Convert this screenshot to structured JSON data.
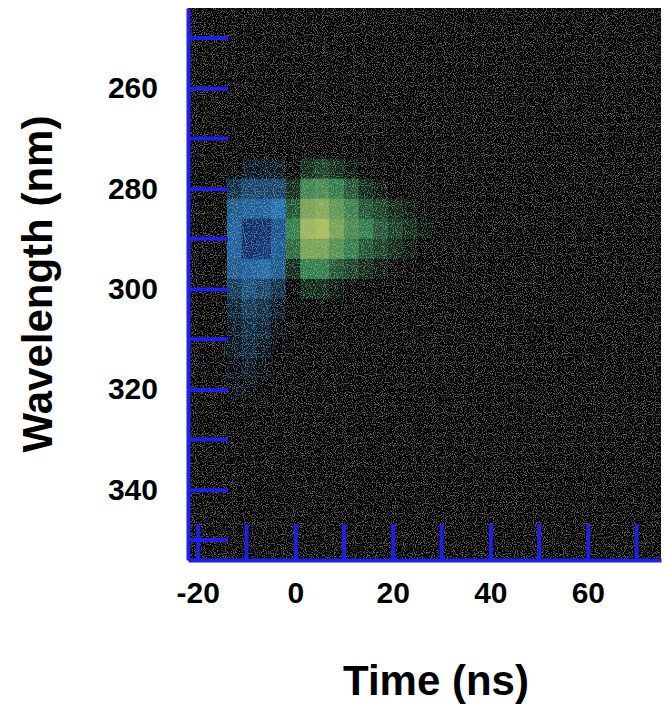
{
  "chart_data": {
    "type": "heatmap",
    "x_label": "Time (ns)",
    "y_label": "Wavelength (nm)",
    "xlim": [
      -22,
      75
    ],
    "ylim": [
      244,
      354
    ],
    "xticks": [
      -20,
      0,
      20,
      40,
      60
    ],
    "yticks": [
      260,
      280,
      300,
      320,
      340
    ],
    "x": [
      -12.5,
      -9.5,
      -6.5,
      -3.5,
      -0.5,
      2.5,
      5.5,
      8.5,
      11.5,
      14.5,
      17.5,
      20.5,
      23.5,
      26.5
    ],
    "y": [
      276,
      280,
      284,
      288,
      292,
      296,
      300,
      304,
      308,
      312,
      316,
      320,
      324
    ],
    "z": [
      [
        0,
        -0.1,
        -0.1,
        -0.1,
        0,
        0.1,
        0.15,
        0.1,
        0.05,
        0,
        0,
        0,
        0,
        0
      ],
      [
        -0.2,
        -0.3,
        -0.3,
        -0.3,
        0.1,
        0.35,
        0.4,
        0.3,
        0.2,
        0.1,
        0.05,
        0,
        0,
        0
      ],
      [
        -0.4,
        -0.6,
        -0.6,
        -0.5,
        0.2,
        0.6,
        0.65,
        0.5,
        0.35,
        0.2,
        0.15,
        0.1,
        0.05,
        0
      ],
      [
        -0.6,
        -0.9,
        -0.9,
        -0.7,
        0.3,
        0.75,
        0.8,
        0.6,
        0.4,
        0.3,
        0.2,
        0.15,
        0.1,
        0.05
      ],
      [
        -0.6,
        -0.9,
        -0.85,
        -0.65,
        0.25,
        0.6,
        0.6,
        0.45,
        0.3,
        0.2,
        0.15,
        0.1,
        0.05,
        0
      ],
      [
        -0.4,
        -0.6,
        -0.55,
        -0.4,
        0.1,
        0.3,
        0.3,
        0.2,
        0.15,
        0.1,
        0.05,
        0,
        0,
        0
      ],
      [
        -0.25,
        -0.35,
        -0.3,
        -0.2,
        0,
        0.1,
        0.1,
        0.05,
        0,
        0,
        0,
        0,
        0,
        0
      ],
      [
        -0.15,
        -0.25,
        -0.2,
        -0.1,
        0,
        0,
        0,
        0,
        0,
        0,
        0,
        0,
        0,
        0
      ],
      [
        -0.1,
        -0.2,
        -0.15,
        -0.05,
        0,
        0,
        0,
        0,
        0,
        0,
        0,
        0,
        0,
        0
      ],
      [
        -0.1,
        -0.15,
        -0.1,
        0,
        0,
        0,
        0,
        0,
        0,
        0,
        0,
        0,
        0,
        0
      ],
      [
        -0.05,
        -0.1,
        -0.05,
        0,
        0,
        0,
        0,
        0,
        0,
        0,
        0,
        0,
        0,
        0
      ],
      [
        -0.05,
        -0.05,
        0,
        0,
        0,
        0,
        0,
        0,
        0,
        0,
        0,
        0,
        0,
        0
      ],
      [
        0,
        0,
        0,
        0,
        0,
        0,
        0,
        0,
        0,
        0,
        0,
        0,
        0,
        0
      ]
    ],
    "value_range": [
      -1,
      1
    ]
  }
}
